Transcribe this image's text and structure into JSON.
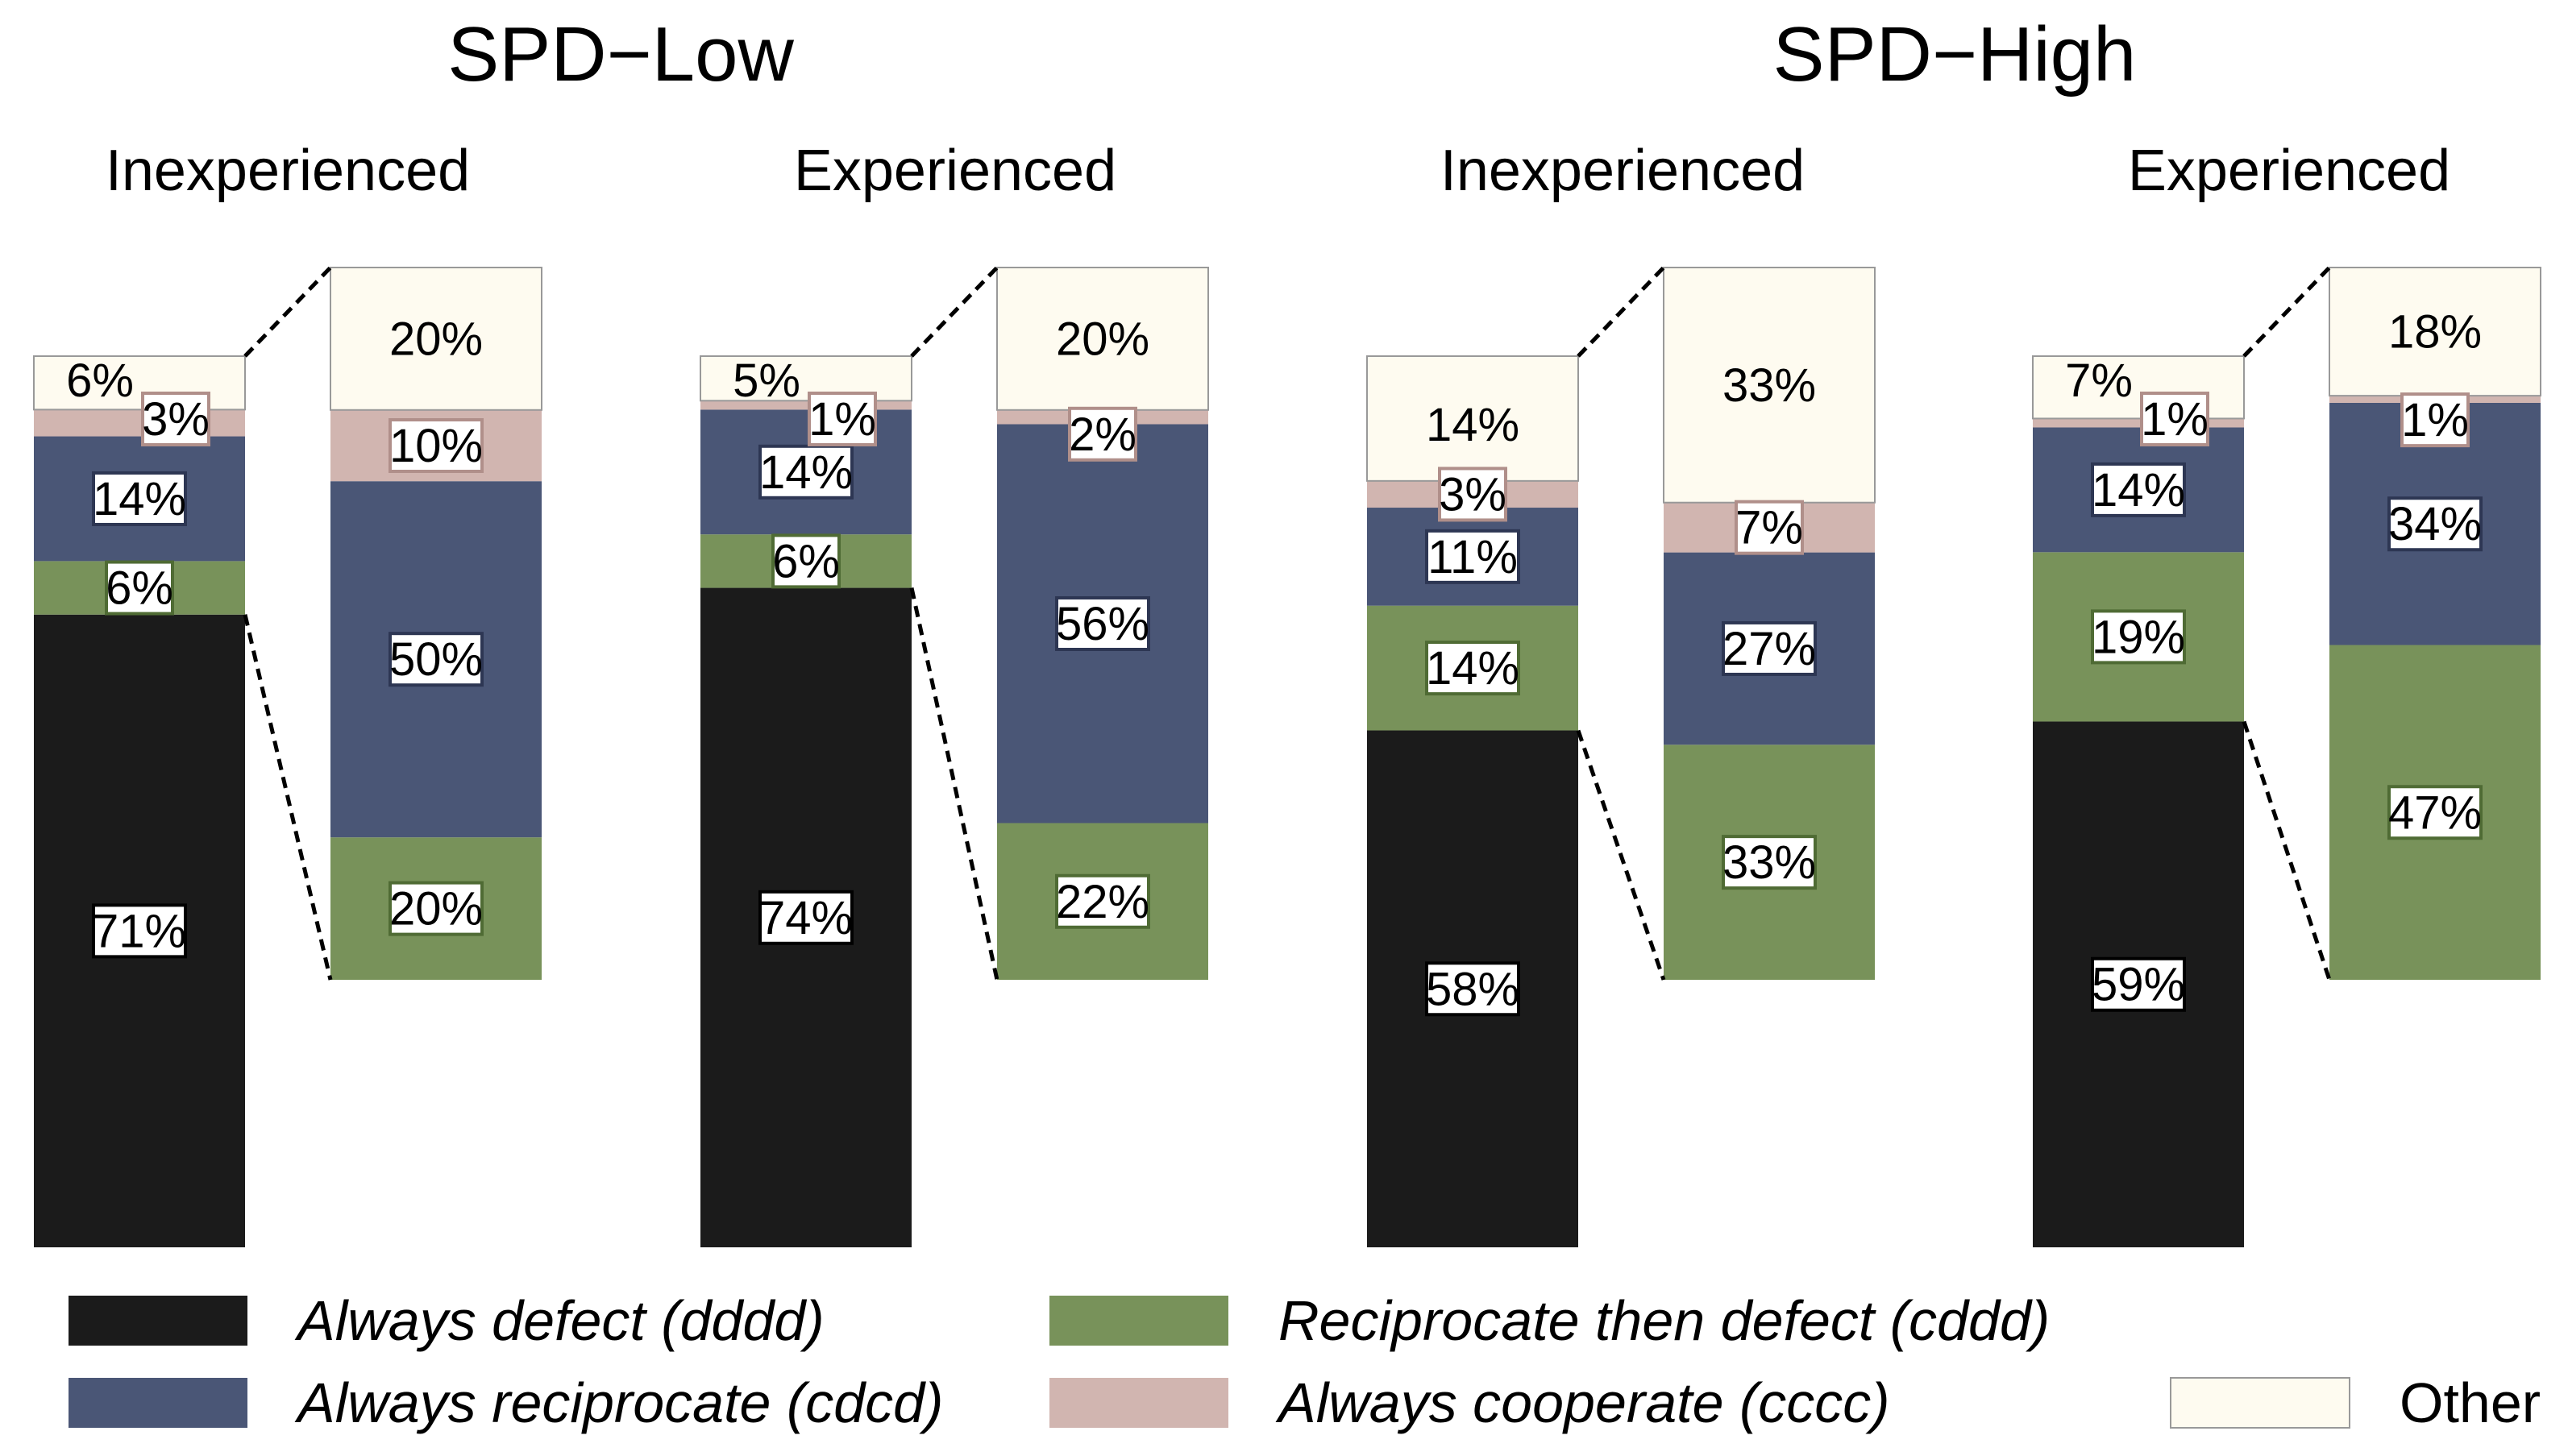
{
  "chart_data": {
    "type": "bar",
    "stacked": true,
    "categories_order_bottom_to_top": [
      "dddd",
      "cddd",
      "cdcd",
      "cccc",
      "other"
    ],
    "strategies": [
      {
        "key": "dddd",
        "name": "Always defect (dddd)",
        "color": "#1b1b1b"
      },
      {
        "key": "cdcd",
        "name": "Always reciprocate (cdcd)",
        "color": "#4a5676"
      },
      {
        "key": "cddd",
        "name": "Reciprocate then defect (cddd)",
        "color": "#78925a"
      },
      {
        "key": "cccc",
        "name": "Always cooperate (cccc)",
        "color": "#d1b5b0"
      },
      {
        "key": "other",
        "name": "Other",
        "color": "#fefbf0"
      }
    ],
    "groups": [
      {
        "title": "SPD−Low",
        "panels": [
          {
            "subtitle": "Inexperienced",
            "full": {
              "dddd": 71,
              "cddd": 6,
              "cdcd": 14,
              "cccc": 3,
              "other": 6
            },
            "full_labels": {
              "dddd": "71%",
              "cddd": "6%",
              "cdcd": "14%",
              "cccc": "3%",
              "other": "6%"
            },
            "zoom": {
              "cddd": 20,
              "cdcd": 50,
              "cccc": 10,
              "other": 20
            },
            "zoom_labels": {
              "cddd": "20%",
              "cdcd": "50%",
              "cccc": "10%",
              "other": "20%"
            }
          },
          {
            "subtitle": "Experienced",
            "full": {
              "dddd": 74,
              "cddd": 6,
              "cdcd": 14,
              "cccc": 1,
              "other": 5
            },
            "full_labels": {
              "dddd": "74%",
              "cddd": "6%",
              "cdcd": "14%",
              "cccc": "1%",
              "other": "5%"
            },
            "zoom": {
              "cddd": 22,
              "cdcd": 56,
              "cccc": 2,
              "other": 20
            },
            "zoom_labels": {
              "cddd": "22%",
              "cdcd": "56%",
              "cccc": "2%",
              "other": "20%"
            }
          }
        ]
      },
      {
        "title": "SPD−High",
        "panels": [
          {
            "subtitle": "Inexperienced",
            "full": {
              "dddd": 58,
              "cddd": 14,
              "cdcd": 11,
              "cccc": 3,
              "other": 14
            },
            "full_labels": {
              "dddd": "58%",
              "cddd": "14%",
              "cdcd": "11%",
              "cccc": "3%",
              "other": "14%"
            },
            "zoom": {
              "cddd": 33,
              "cdcd": 27,
              "cccc": 7,
              "other": 33
            },
            "zoom_labels": {
              "cddd": "33%",
              "cdcd": "27%",
              "cccc": "7%",
              "other": "33%"
            }
          },
          {
            "subtitle": "Experienced",
            "full": {
              "dddd": 59,
              "cddd": 19,
              "cdcd": 14,
              "cccc": 1,
              "other": 7
            },
            "full_labels": {
              "dddd": "59%",
              "cddd": "19%",
              "cdcd": "14%",
              "cccc": "1%",
              "other": "7%"
            },
            "zoom": {
              "cddd": 47,
              "cdcd": 34,
              "cccc": 1,
              "other": 18
            },
            "zoom_labels": {
              "cddd": "47%",
              "cdcd": "34%",
              "cccc": "1%",
              "other": "18%"
            }
          }
        ]
      }
    ]
  }
}
